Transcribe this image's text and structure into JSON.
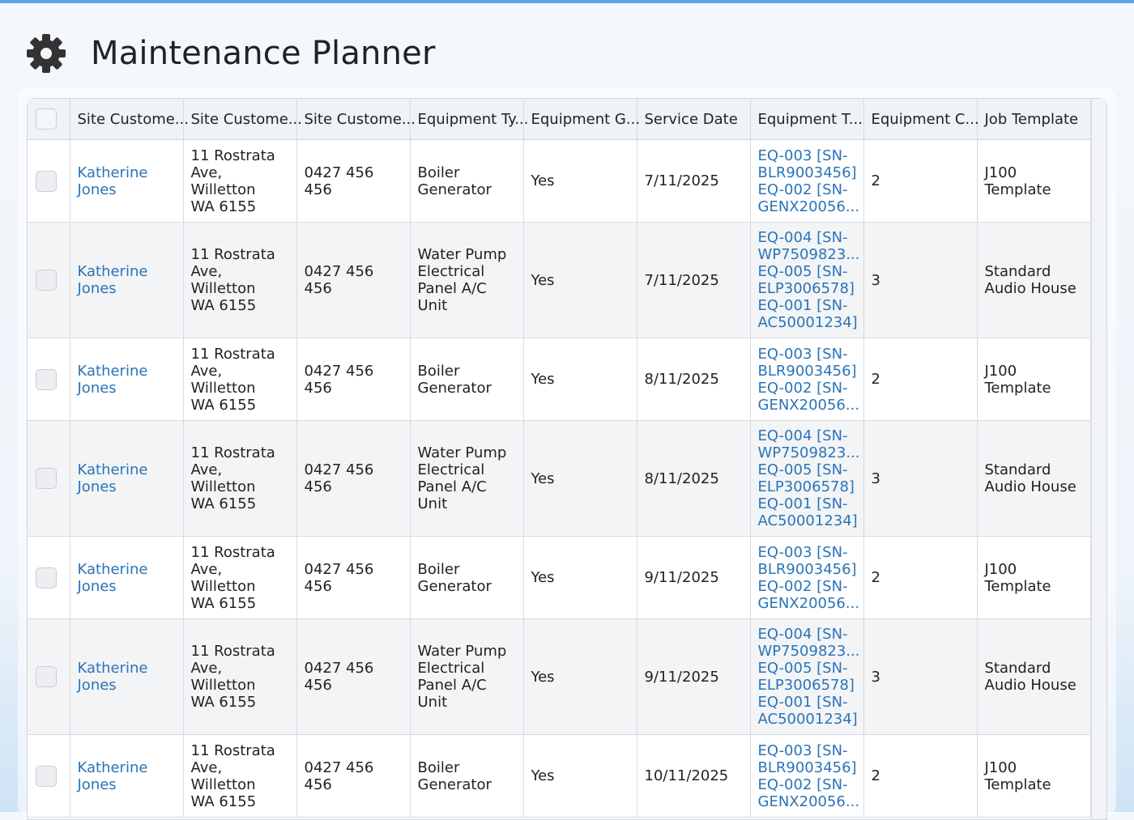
{
  "app": {
    "title": "Maintenance Planner",
    "icon": "gear-icon"
  },
  "columns": [
    "Site Custome...",
    "Site Custome...",
    "Site Custome...",
    "Equipment Ty...",
    "Equipment G...",
    "Service Date",
    "Equipment T...",
    "Equipment C...",
    "Job Template"
  ],
  "rows": [
    {
      "customer": [
        "Katherine",
        "Jones"
      ],
      "address": [
        "11 Rostrata",
        "Ave, Willetton",
        "WA 6155"
      ],
      "phone": "0427 456 456",
      "equipment_type": [
        "Boiler",
        "Generator"
      ],
      "equipment_g": "Yes",
      "service_date": "7/11/2025",
      "equipment_tags": [
        "EQ-003 [SN-",
        "BLR9003456]",
        "EQ-002 [SN-",
        "GENX20056..."
      ],
      "equipment_count": "2",
      "job_template": [
        "J100",
        "Template"
      ]
    },
    {
      "customer": [
        "Katherine",
        "Jones"
      ],
      "address": [
        "11 Rostrata",
        "Ave, Willetton",
        "WA 6155"
      ],
      "phone": "0427 456 456",
      "equipment_type": [
        "Water Pump",
        "Electrical",
        "Panel A/C",
        "Unit"
      ],
      "equipment_g": "Yes",
      "service_date": "7/11/2025",
      "equipment_tags": [
        "EQ-004 [SN-",
        "WP7509823...",
        "EQ-005 [SN-",
        "ELP3006578]",
        "EQ-001 [SN-",
        "AC50001234]"
      ],
      "equipment_count": "3",
      "job_template": [
        "Standard",
        "Audio House"
      ]
    },
    {
      "customer": [
        "Katherine",
        "Jones"
      ],
      "address": [
        "11 Rostrata",
        "Ave, Willetton",
        "WA 6155"
      ],
      "phone": "0427 456 456",
      "equipment_type": [
        "Boiler",
        "Generator"
      ],
      "equipment_g": "Yes",
      "service_date": "8/11/2025",
      "equipment_tags": [
        "EQ-003 [SN-",
        "BLR9003456]",
        "EQ-002 [SN-",
        "GENX20056..."
      ],
      "equipment_count": "2",
      "job_template": [
        "J100",
        "Template"
      ]
    },
    {
      "customer": [
        "Katherine",
        "Jones"
      ],
      "address": [
        "11 Rostrata",
        "Ave, Willetton",
        "WA 6155"
      ],
      "phone": "0427 456 456",
      "equipment_type": [
        "Water Pump",
        "Electrical",
        "Panel A/C",
        "Unit"
      ],
      "equipment_g": "Yes",
      "service_date": "8/11/2025",
      "equipment_tags": [
        "EQ-004 [SN-",
        "WP7509823...",
        "EQ-005 [SN-",
        "ELP3006578]",
        "EQ-001 [SN-",
        "AC50001234]"
      ],
      "equipment_count": "3",
      "job_template": [
        "Standard",
        "Audio House"
      ]
    },
    {
      "customer": [
        "Katherine",
        "Jones"
      ],
      "address": [
        "11 Rostrata",
        "Ave, Willetton",
        "WA 6155"
      ],
      "phone": "0427 456 456",
      "equipment_type": [
        "Boiler",
        "Generator"
      ],
      "equipment_g": "Yes",
      "service_date": "9/11/2025",
      "equipment_tags": [
        "EQ-003 [SN-",
        "BLR9003456]",
        "EQ-002 [SN-",
        "GENX20056..."
      ],
      "equipment_count": "2",
      "job_template": [
        "J100",
        "Template"
      ]
    },
    {
      "customer": [
        "Katherine",
        "Jones"
      ],
      "address": [
        "11 Rostrata",
        "Ave, Willetton",
        "WA 6155"
      ],
      "phone": "0427 456 456",
      "equipment_type": [
        "Water Pump",
        "Electrical",
        "Panel A/C",
        "Unit"
      ],
      "equipment_g": "Yes",
      "service_date": "9/11/2025",
      "equipment_tags": [
        "EQ-004 [SN-",
        "WP7509823...",
        "EQ-005 [SN-",
        "ELP3006578]",
        "EQ-001 [SN-",
        "AC50001234]"
      ],
      "equipment_count": "3",
      "job_template": [
        "Standard",
        "Audio House"
      ]
    },
    {
      "customer": [
        "Katherine",
        "Jones"
      ],
      "address": [
        "11 Rostrata",
        "Ave, Willetton",
        "WA 6155"
      ],
      "phone": "0427 456 456",
      "equipment_type": [
        "Boiler",
        "Generator"
      ],
      "equipment_g": "Yes",
      "service_date": "10/11/2025",
      "equipment_tags": [
        "EQ-003 [SN-",
        "BLR9003456]",
        "EQ-002 [SN-",
        "GENX20056..."
      ],
      "equipment_count": "2",
      "job_template": [
        "J100",
        "Template"
      ]
    }
  ],
  "colors": {
    "link": "#2a74b8",
    "header_bg": "#eef3f8",
    "row_alt": "#f3f4f6",
    "accent": "#5aa7e6"
  }
}
